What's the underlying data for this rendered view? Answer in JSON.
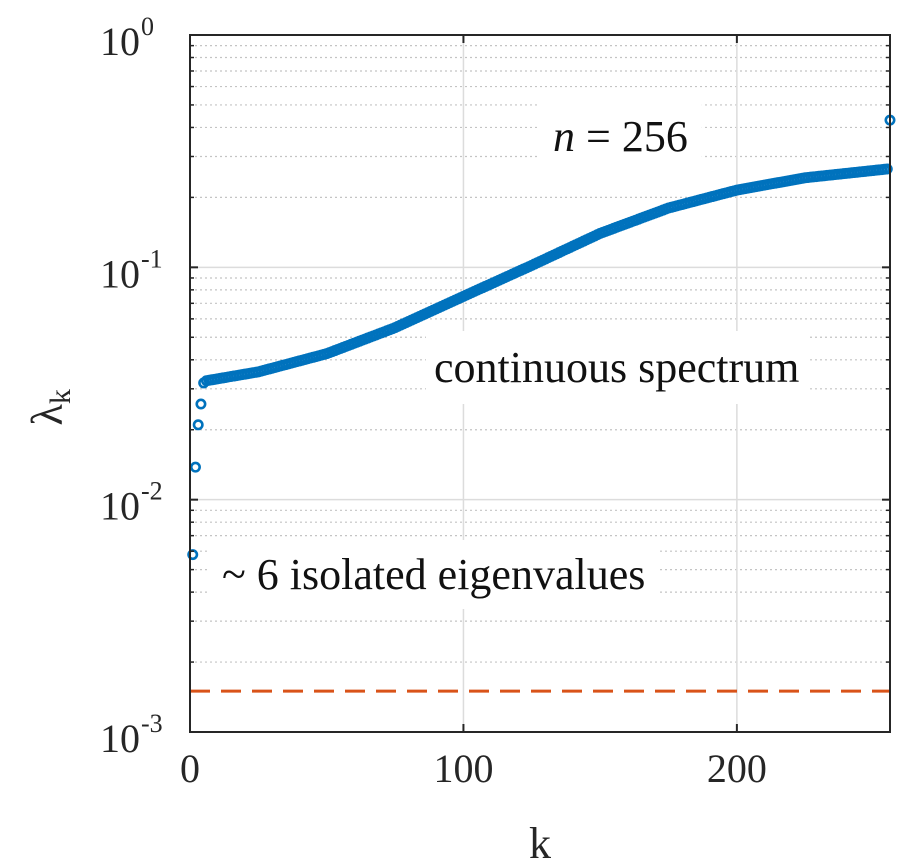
{
  "chart_data": {
    "type": "scatter",
    "xlabel": "k",
    "ylabel": "λ",
    "ylabel_sub": "k",
    "xlim": [
      0,
      256
    ],
    "ylim": [
      0.001,
      1
    ],
    "yscale": "log",
    "grid": true,
    "minor_grid": true,
    "xticks": [
      0,
      100,
      200
    ],
    "xtick_labels": [
      "0",
      "100",
      "200"
    ],
    "yticks": [
      0.001,
      0.01,
      0.1,
      1
    ],
    "ytick_labels": [
      {
        "base": "10",
        "exp": "-3"
      },
      {
        "base": "10",
        "exp": "-2"
      },
      {
        "base": "10",
        "exp": "-1"
      },
      {
        "base": "10",
        "exp": "0"
      }
    ],
    "series": [
      {
        "marker": "circle-open",
        "color": "#0072BD",
        "isolated_points": [
          {
            "x": 1,
            "y": 0.0058
          },
          {
            "x": 2,
            "y": 0.0138
          },
          {
            "x": 3,
            "y": 0.021
          },
          {
            "x": 4,
            "y": 0.0258
          },
          {
            "x": 5,
            "y": 0.0318
          },
          {
            "x": 256,
            "y": 0.43
          }
        ],
        "continuous": {
          "k_start": 6,
          "k_end": 255,
          "anchors": [
            {
              "x": 6,
              "y": 0.0325
            },
            {
              "x": 25,
              "y": 0.0355
            },
            {
              "x": 50,
              "y": 0.0425
            },
            {
              "x": 75,
              "y": 0.055
            },
            {
              "x": 100,
              "y": 0.075
            },
            {
              "x": 125,
              "y": 0.102
            },
            {
              "x": 150,
              "y": 0.14
            },
            {
              "x": 175,
              "y": 0.18
            },
            {
              "x": 200,
              "y": 0.215
            },
            {
              "x": 225,
              "y": 0.243
            },
            {
              "x": 255,
              "y": 0.265
            }
          ]
        }
      }
    ],
    "reference_line": {
      "y": 0.0015,
      "style": "dashed",
      "color": "#D95319"
    },
    "annotations": {
      "n_label_var": "n",
      "n_label_rest": " = 256",
      "continuous_label": "continuous spectrum",
      "isolated_label": "~ 6 isolated eigenvalues"
    }
  }
}
